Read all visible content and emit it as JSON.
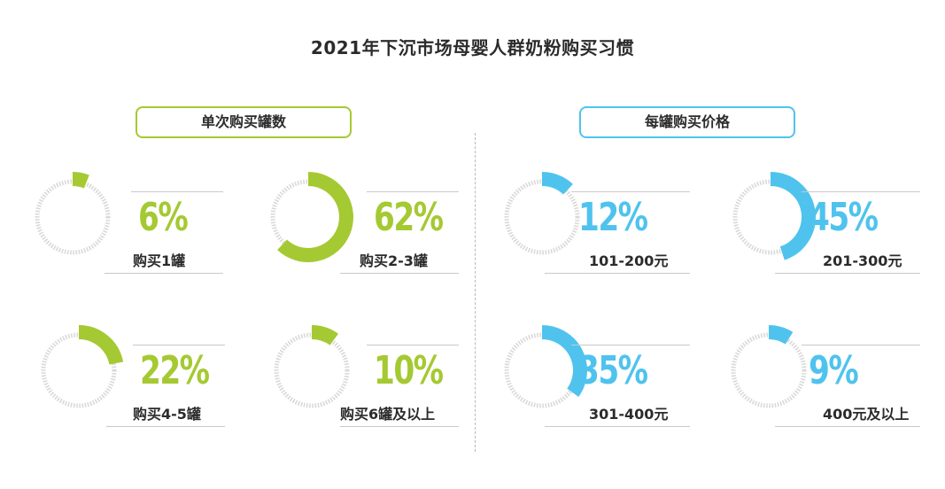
{
  "title": "2021年下沉市场母婴人群奶粉购买习惯",
  "colors": {
    "green": "#a5c932",
    "blue": "#4fc3ee",
    "track": "#d9d9d9"
  },
  "left_section": {
    "label": "单次购买罐数"
  },
  "right_section": {
    "label": "每罐购买价格"
  },
  "chart_data": [
    {
      "type": "pie",
      "title": "单次购买罐数",
      "slices": [
        {
          "label": "购买1罐",
          "value": 6,
          "value_label": "6%"
        },
        {
          "label": "购买2-3罐",
          "value": 62,
          "value_label": "62%"
        },
        {
          "label": "购买4-5罐",
          "value": 22,
          "value_label": "22%"
        },
        {
          "label": "购买6罐及以上",
          "value": 10,
          "value_label": "10%"
        }
      ]
    },
    {
      "type": "pie",
      "title": "每罐购买价格",
      "slices": [
        {
          "label": "101-200元",
          "value": 12,
          "value_label": "12%"
        },
        {
          "label": "201-300元",
          "value": 45,
          "value_label": "45%"
        },
        {
          "label": "301-400元",
          "value": 35,
          "value_label": "35%"
        },
        {
          "label": "400元及以上",
          "value": 9,
          "value_label": "9%"
        }
      ]
    }
  ]
}
